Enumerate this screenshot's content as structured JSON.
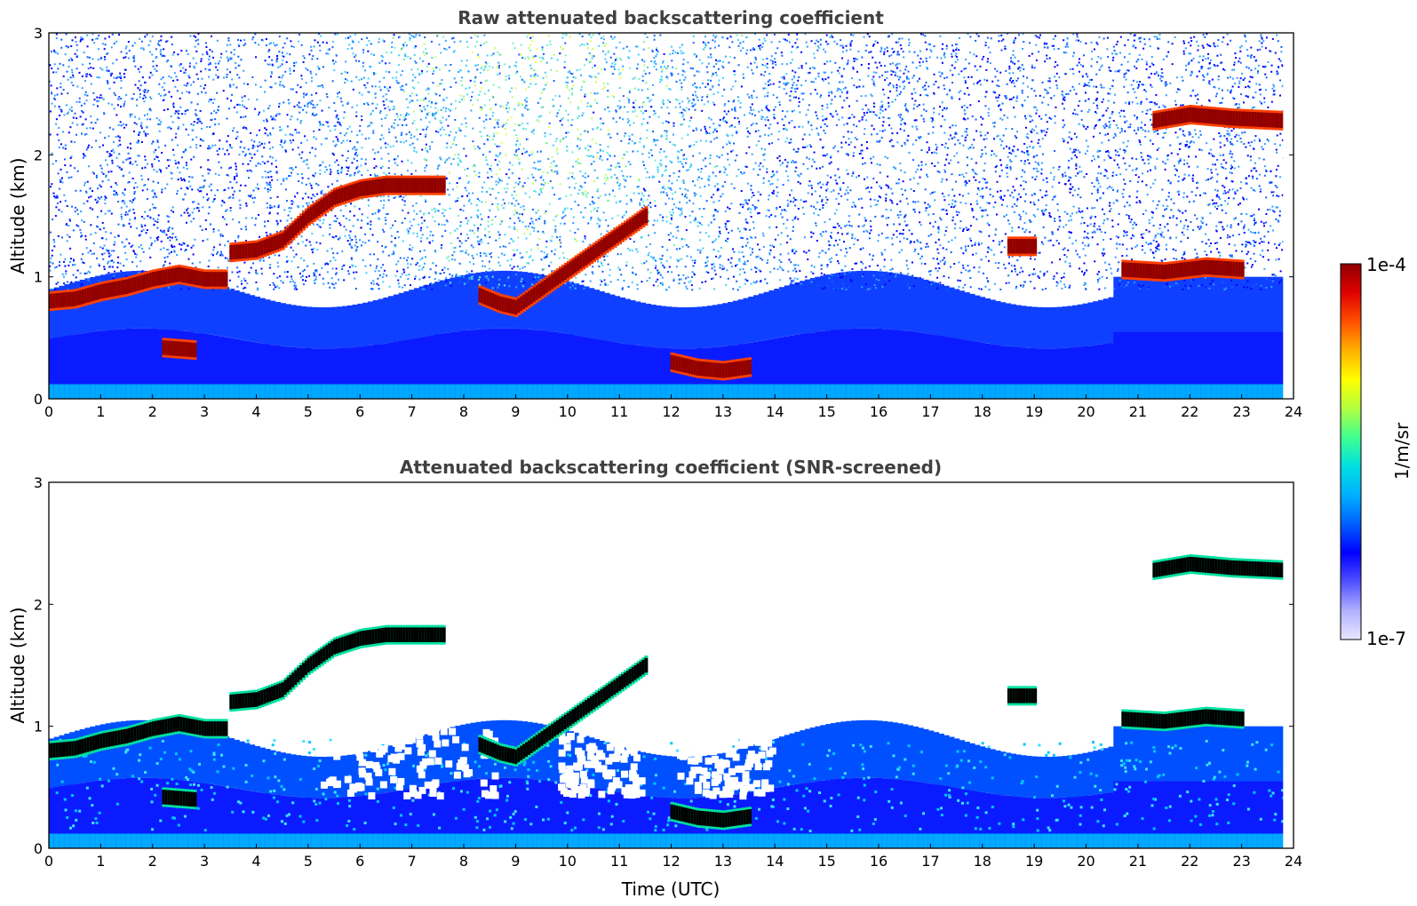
{
  "chart_data": [
    {
      "type": "heatmap",
      "title": "Raw attenuated backscattering coefficient",
      "xlabel": "",
      "ylabel": "Altitude (km)",
      "xlim": [
        0,
        24
      ],
      "ylim": [
        0,
        3
      ],
      "xticks": [
        "0",
        "1",
        "2",
        "3",
        "4",
        "5",
        "6",
        "7",
        "8",
        "9",
        "10",
        "11",
        "12",
        "13",
        "14",
        "15",
        "16",
        "17",
        "18",
        "19",
        "20",
        "21",
        "22",
        "23",
        "24"
      ],
      "yticks": [
        "0",
        "1",
        "2",
        "3"
      ],
      "cloud_layers": [
        {
          "t": [
            0,
            0.5,
            1,
            1.5,
            2,
            2.5,
            3,
            3.4
          ],
          "alt": [
            0.8,
            0.82,
            0.88,
            0.92,
            0.98,
            1.02,
            0.98,
            0.98
          ]
        },
        {
          "t": [
            3.5,
            4,
            4.5,
            5,
            5.5,
            6,
            6.5,
            7,
            7.6
          ],
          "alt": [
            1.2,
            1.22,
            1.3,
            1.5,
            1.65,
            1.72,
            1.75,
            1.75,
            1.75
          ]
        },
        {
          "t": [
            8.3,
            8.7,
            9,
            9.5,
            10,
            10.5,
            11,
            11.5
          ],
          "alt": [
            0.85,
            0.78,
            0.75,
            0.9,
            1.05,
            1.2,
            1.35,
            1.5
          ]
        },
        {
          "t": [
            2.2,
            2.8
          ],
          "alt": [
            0.42,
            0.4
          ]
        },
        {
          "t": [
            12,
            12.5,
            13,
            13.5
          ],
          "alt": [
            0.3,
            0.25,
            0.23,
            0.26
          ]
        },
        {
          "t": [
            18.5,
            19
          ],
          "alt": [
            1.25,
            1.25
          ]
        },
        {
          "t": [
            20.7,
            21.5,
            22.3,
            23
          ],
          "alt": [
            1.06,
            1.04,
            1.08,
            1.06
          ]
        },
        {
          "t": [
            21.3,
            22,
            22.8,
            23.8
          ],
          "alt": [
            2.28,
            2.33,
            2.3,
            2.28
          ]
        }
      ],
      "valid_range_x": [
        0,
        23.8
      ]
    },
    {
      "type": "heatmap",
      "title": "Attenuated backscattering coefficient (SNR-screened)",
      "xlabel": "Time (UTC)",
      "ylabel": "Altitude (km)",
      "xlim": [
        0,
        24
      ],
      "ylim": [
        0,
        3
      ],
      "xticks": [
        "0",
        "1",
        "2",
        "3",
        "4",
        "5",
        "6",
        "7",
        "8",
        "9",
        "10",
        "11",
        "12",
        "13",
        "14",
        "15",
        "16",
        "17",
        "18",
        "19",
        "20",
        "21",
        "22",
        "23",
        "24"
      ],
      "yticks": [
        "0",
        "1",
        "2",
        "3"
      ],
      "screened_layer_color": "#000000",
      "valid_range_x": [
        0,
        23.8
      ]
    }
  ],
  "colorbar": {
    "label": "1/m/sr",
    "max_label": "1e-4",
    "min_label": "1e-7",
    "colors": [
      "#e8e8ff",
      "#b0b0ff",
      "#5050ff",
      "#0000ff",
      "#0060ff",
      "#00b0ff",
      "#00e0e0",
      "#40ff90",
      "#b0ff40",
      "#ffff00",
      "#ffb000",
      "#ff5000",
      "#e00000",
      "#900000"
    ]
  }
}
